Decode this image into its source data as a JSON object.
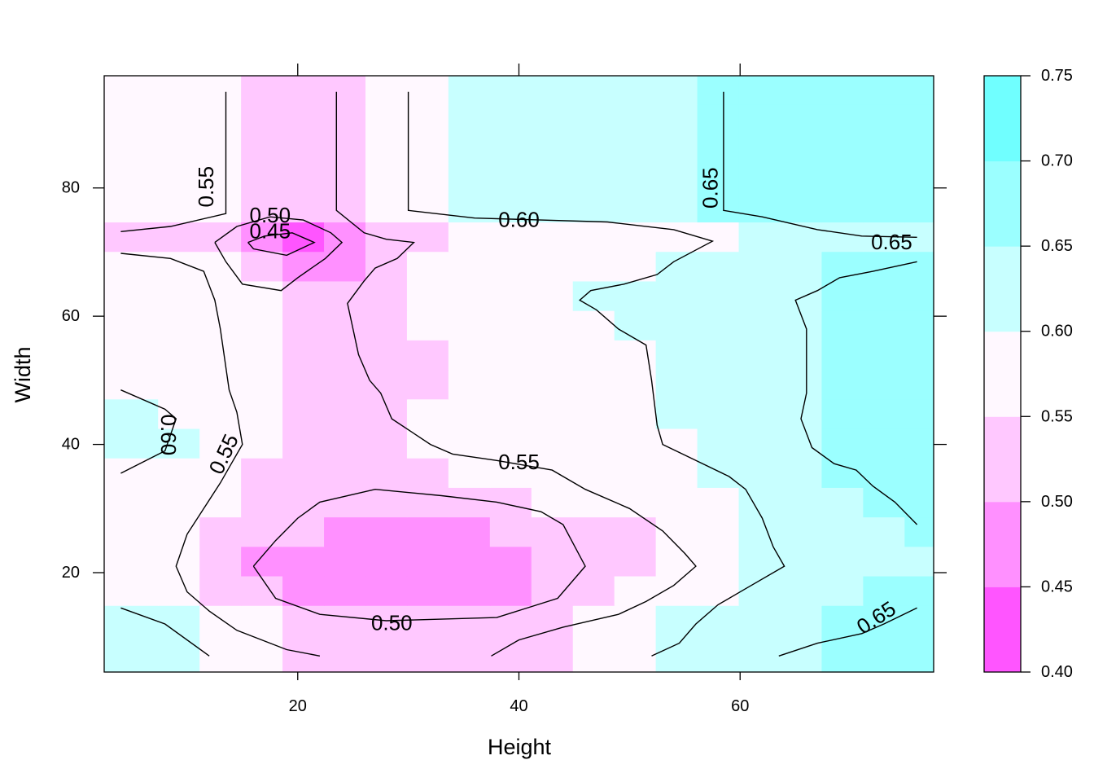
{
  "chart_data": {
    "type": "heatmap",
    "subtype": "levelplot-with-contours",
    "title": "",
    "xlabel": "Height",
    "ylabel": "Width",
    "xlim": [
      2.5,
      77.5
    ],
    "ylim": [
      4.5,
      97.5
    ],
    "x_ticks": [
      20,
      40,
      60
    ],
    "x_tick_labels": [
      "20",
      "40",
      "60"
    ],
    "y_ticks": [
      20,
      40,
      60,
      80
    ],
    "y_tick_labels": [
      "20",
      "40",
      "60",
      "80"
    ],
    "colorkey": {
      "breaks": [
        0.4,
        0.45,
        0.5,
        0.55,
        0.6,
        0.65,
        0.7,
        0.75
      ],
      "labels": [
        "0.40",
        "0.45",
        "0.50",
        "0.55",
        "0.60",
        "0.65",
        "0.70",
        "0.75"
      ],
      "colors": [
        "#ff55ff",
        "#ff90ff",
        "#ffc8ff",
        "#fff8ff",
        "#c8ffff",
        "#9bffff",
        "#70ffff"
      ]
    },
    "x_cells": [
      5.5,
      9.25,
      13,
      16.75,
      20.5,
      24.25,
      28,
      31.75,
      35.5,
      39.25,
      43,
      46.75,
      50.5,
      54.25,
      58,
      61.75,
      65.5,
      69.25,
      73,
      76.75
    ],
    "y_cells": [
      8,
      12.6,
      17.2,
      21.8,
      26.4,
      31,
      35.6,
      40.2,
      44.8,
      49.4,
      54,
      58.6,
      63.2,
      67.8,
      72.4,
      77,
      81.6,
      86.2,
      90.8,
      95.4
    ],
    "z_level_index": [
      [
        4,
        4,
        3,
        3,
        2,
        2,
        2,
        2,
        2,
        2,
        2,
        3,
        3,
        4,
        4,
        4,
        4,
        5,
        5,
        5
      ],
      [
        4,
        4,
        3,
        3,
        2,
        2,
        2,
        2,
        2,
        2,
        2,
        3,
        3,
        4,
        4,
        4,
        4,
        5,
        5,
        5
      ],
      [
        3,
        3,
        2,
        2,
        1,
        1,
        1,
        1,
        1,
        1,
        2,
        2,
        3,
        3,
        3,
        4,
        4,
        4,
        5,
        5
      ],
      [
        3,
        3,
        2,
        1,
        1,
        1,
        1,
        1,
        1,
        1,
        2,
        2,
        2,
        3,
        3,
        4,
        4,
        4,
        4,
        4
      ],
      [
        3,
        3,
        2,
        2,
        2,
        1,
        1,
        1,
        1,
        2,
        2,
        2,
        2,
        3,
        3,
        4,
        4,
        4,
        4,
        5
      ],
      [
        3,
        3,
        3,
        2,
        2,
        2,
        2,
        2,
        2,
        2,
        3,
        3,
        3,
        3,
        3,
        4,
        4,
        4,
        5,
        5
      ],
      [
        3,
        3,
        3,
        2,
        2,
        2,
        2,
        2,
        3,
        3,
        3,
        3,
        3,
        3,
        4,
        4,
        4,
        5,
        5,
        5
      ],
      [
        4,
        4,
        3,
        3,
        2,
        2,
        2,
        3,
        3,
        3,
        3,
        3,
        3,
        3,
        4,
        4,
        4,
        5,
        5,
        5
      ],
      [
        4,
        3,
        3,
        3,
        2,
        2,
        2,
        3,
        3,
        3,
        3,
        3,
        3,
        4,
        4,
        4,
        4,
        5,
        5,
        5
      ],
      [
        3,
        3,
        3,
        3,
        2,
        2,
        2,
        2,
        3,
        3,
        3,
        3,
        3,
        4,
        4,
        4,
        4,
        5,
        5,
        5
      ],
      [
        3,
        3,
        3,
        3,
        2,
        2,
        2,
        2,
        3,
        3,
        3,
        3,
        3,
        4,
        4,
        4,
        4,
        5,
        5,
        5
      ],
      [
        3,
        3,
        3,
        3,
        2,
        2,
        2,
        3,
        3,
        3,
        3,
        3,
        4,
        4,
        4,
        4,
        4,
        5,
        5,
        5
      ],
      [
        3,
        3,
        3,
        3,
        2,
        2,
        2,
        3,
        3,
        3,
        3,
        4,
        4,
        4,
        4,
        4,
        4,
        5,
        5,
        5
      ],
      [
        3,
        3,
        3,
        2,
        1,
        1,
        2,
        3,
        3,
        3,
        3,
        3,
        3,
        4,
        4,
        4,
        4,
        5,
        5,
        5
      ],
      [
        2,
        2,
        2,
        1,
        0,
        1,
        2,
        2,
        3,
        3,
        3,
        3,
        3,
        3,
        3,
        4,
        4,
        4,
        4,
        4
      ],
      [
        3,
        3,
        3,
        2,
        2,
        2,
        3,
        3,
        4,
        4,
        4,
        4,
        4,
        4,
        5,
        5,
        5,
        5,
        5,
        5
      ],
      [
        3,
        3,
        3,
        2,
        2,
        2,
        3,
        3,
        4,
        4,
        4,
        4,
        4,
        4,
        5,
        5,
        5,
        5,
        5,
        5
      ],
      [
        3,
        3,
        3,
        2,
        2,
        2,
        3,
        3,
        4,
        4,
        4,
        4,
        4,
        4,
        5,
        5,
        5,
        5,
        5,
        5
      ],
      [
        3,
        3,
        3,
        2,
        2,
        2,
        3,
        3,
        4,
        4,
        4,
        4,
        4,
        4,
        5,
        5,
        5,
        5,
        5,
        5
      ],
      [
        3,
        3,
        3,
        2,
        2,
        2,
        3,
        3,
        4,
        4,
        4,
        4,
        4,
        4,
        5,
        5,
        5,
        5,
        5,
        5
      ]
    ],
    "contours": [
      {
        "level": "0.45",
        "points": [
          [
            15.5,
            71.5
          ],
          [
            17,
            72.5
          ],
          [
            19.5,
            73
          ],
          [
            21.5,
            71.5
          ],
          [
            19,
            69.5
          ],
          [
            16,
            70.5
          ],
          [
            15.5,
            71.5
          ]
        ]
      },
      {
        "level": "0.50",
        "points": [
          [
            12.5,
            71.5
          ],
          [
            14.5,
            74
          ],
          [
            17.5,
            75.5
          ],
          [
            20.5,
            75
          ],
          [
            23,
            73
          ],
          [
            24,
            71.5
          ],
          [
            22.5,
            69
          ],
          [
            20,
            66
          ],
          [
            18.5,
            64
          ],
          [
            15,
            65
          ],
          [
            13.5,
            68.5
          ],
          [
            12.5,
            71.5
          ]
        ]
      },
      {
        "level": "0.50",
        "points": [
          [
            16,
            21
          ],
          [
            18,
            25
          ],
          [
            20,
            28.5
          ],
          [
            22,
            31
          ],
          [
            27,
            33
          ],
          [
            33,
            32
          ],
          [
            38,
            31
          ],
          [
            42,
            29.5
          ],
          [
            44,
            27.5
          ],
          [
            46,
            21
          ],
          [
            43.5,
            16
          ],
          [
            38,
            13
          ],
          [
            28,
            12.5
          ],
          [
            22,
            13.5
          ],
          [
            18,
            16
          ],
          [
            16,
            21
          ]
        ]
      },
      {
        "level": "0.55",
        "points": [
          [
            13.5,
            95
          ],
          [
            13.5,
            76
          ],
          [
            8.5,
            74
          ],
          [
            4,
            73.2
          ]
        ]
      },
      {
        "level": "0.55",
        "points": [
          [
            4,
            69.8
          ],
          [
            8.5,
            69
          ],
          [
            11.5,
            67
          ],
          [
            12.5,
            62.5
          ],
          [
            13,
            58
          ],
          [
            13.8,
            48.5
          ],
          [
            14.5,
            45
          ],
          [
            15,
            40
          ],
          [
            14,
            37
          ],
          [
            13,
            34
          ],
          [
            11.5,
            30
          ],
          [
            10,
            26
          ],
          [
            9,
            21
          ],
          [
            10,
            17
          ],
          [
            12,
            14
          ],
          [
            14.5,
            11
          ],
          [
            19,
            8
          ],
          [
            22,
            7
          ]
        ]
      },
      {
        "level": "0.55",
        "points": [
          [
            23.5,
            95
          ],
          [
            23.5,
            76.5
          ],
          [
            26,
            73
          ],
          [
            28,
            72
          ],
          [
            30.5,
            71.5
          ],
          [
            29,
            69
          ],
          [
            27,
            67.5
          ],
          [
            26,
            65.5
          ],
          [
            24.5,
            62
          ],
          [
            25,
            58
          ],
          [
            25.5,
            54
          ],
          [
            26.5,
            50
          ],
          [
            27.5,
            48
          ],
          [
            28.5,
            44
          ],
          [
            32,
            40
          ],
          [
            34,
            38.5
          ],
          [
            38,
            37.5
          ],
          [
            43,
            36
          ],
          [
            46,
            33
          ],
          [
            50,
            30
          ],
          [
            53,
            26.5
          ],
          [
            55,
            23
          ],
          [
            56,
            21
          ],
          [
            54,
            18
          ],
          [
            51.5,
            15.5
          ],
          [
            49,
            13.5
          ],
          [
            44,
            11.5
          ],
          [
            40,
            9.5
          ],
          [
            37.5,
            7
          ]
        ]
      },
      {
        "level": "0.60",
        "points": [
          [
            30,
            95
          ],
          [
            30,
            76.5
          ],
          [
            36,
            75.3
          ],
          [
            48,
            74.7
          ],
          [
            54,
            73.5
          ],
          [
            57.5,
            71.7
          ],
          [
            54,
            68.5
          ],
          [
            52.5,
            66.5
          ],
          [
            49.5,
            65
          ],
          [
            46.5,
            64
          ],
          [
            45.5,
            62.5
          ],
          [
            47,
            61
          ],
          [
            49,
            58
          ],
          [
            51.5,
            55.5
          ],
          [
            52,
            50
          ],
          [
            52.5,
            43
          ],
          [
            53,
            40
          ],
          [
            56,
            37.5
          ],
          [
            59,
            35
          ],
          [
            60.5,
            33
          ],
          [
            62,
            28.5
          ],
          [
            63,
            24
          ],
          [
            64,
            21
          ],
          [
            60.5,
            17.5
          ],
          [
            58,
            15
          ],
          [
            56,
            12
          ],
          [
            54.5,
            9
          ],
          [
            52,
            7
          ]
        ]
      },
      {
        "level": "0.60",
        "points": [
          [
            4,
            48.5
          ],
          [
            8,
            45.5
          ],
          [
            9,
            44
          ],
          [
            8,
            39
          ],
          [
            4,
            35.5
          ]
        ]
      },
      {
        "level": "0.65",
        "points": [
          [
            58.5,
            95
          ],
          [
            58.5,
            76.5
          ],
          [
            62,
            75.5
          ],
          [
            67,
            73.5
          ],
          [
            71,
            72.5
          ],
          [
            76,
            72.3
          ]
        ]
      },
      {
        "level": "0.65",
        "points": [
          [
            76,
            68.5
          ],
          [
            72,
            67
          ],
          [
            69,
            66
          ],
          [
            67,
            64
          ],
          [
            65,
            62.5
          ],
          [
            66,
            58
          ],
          [
            66,
            48
          ],
          [
            65.5,
            44
          ],
          [
            66.5,
            39.5
          ],
          [
            68.5,
            37
          ],
          [
            70.5,
            36
          ],
          [
            72,
            33.5
          ],
          [
            74,
            31
          ],
          [
            76,
            27.5
          ]
        ]
      },
      {
        "level": "0.65",
        "points": [
          [
            63.5,
            7
          ],
          [
            67,
            9
          ],
          [
            71,
            10.5
          ],
          [
            73,
            12
          ],
          [
            76,
            14.5
          ]
        ]
      },
      {
        "level": "0.55",
        "points": [
          [
            4,
            14.5
          ],
          [
            8,
            12
          ],
          [
            12,
            7
          ]
        ]
      }
    ],
    "contour_labels": [
      {
        "text": "0.45",
        "x": 17.5,
        "y": 73.3,
        "angle": 0
      },
      {
        "text": "0.50",
        "x": 17.5,
        "y": 75.8,
        "angle": 0
      },
      {
        "text": "0.50",
        "x": 28.5,
        "y": 12.2,
        "angle": 0
      },
      {
        "text": "0.55",
        "x": 11.7,
        "y": 80.2,
        "angle": -90
      },
      {
        "text": "0.55",
        "x": 13.3,
        "y": 38.5,
        "angle": -65
      },
      {
        "text": "0.55",
        "x": 40,
        "y": 37.3,
        "angle": 0
      },
      {
        "text": "0.60",
        "x": 40,
        "y": 75.1,
        "angle": 0
      },
      {
        "text": "0.60",
        "x": 8.3,
        "y": 41.5,
        "angle": 90
      },
      {
        "text": "0.65",
        "x": 57.3,
        "y": 80,
        "angle": -90
      },
      {
        "text": "0.65",
        "x": 73.7,
        "y": 71.6,
        "angle": 0
      },
      {
        "text": "0.65",
        "x": 72.3,
        "y": 13,
        "angle": -33
      }
    ]
  }
}
